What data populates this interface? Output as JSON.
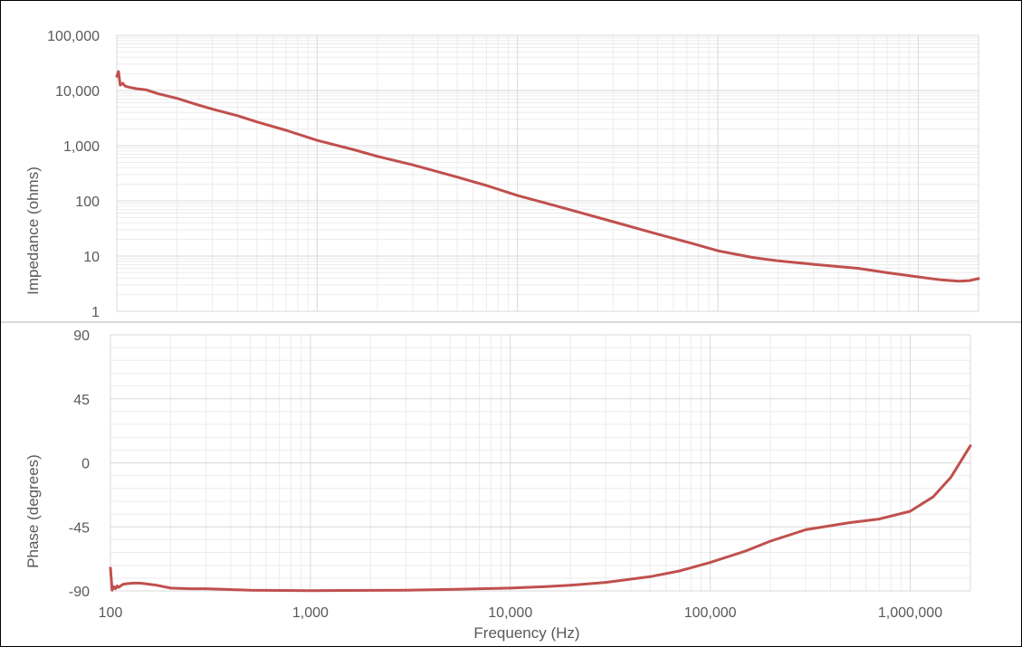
{
  "colors": {
    "series": "#c0504d",
    "major_grid": "#d9d9d9",
    "minor_grid": "#ececec",
    "axis_text": "#595959"
  },
  "chart_data": [
    {
      "type": "line",
      "title": "",
      "xlabel": "",
      "ylabel": "Impedance (ohms)",
      "x_scale": "log",
      "y_scale": "log",
      "xlim": [
        100,
        2000000
      ],
      "ylim": [
        1,
        100000
      ],
      "grid": true,
      "yticks": [
        1,
        10,
        100,
        1000,
        10000,
        100000
      ],
      "ytick_labels": [
        "1",
        "10",
        "100",
        "1,000",
        "10,000",
        "100,000"
      ],
      "series": [
        {
          "x": [
            100,
            102,
            104,
            107,
            110,
            115,
            125,
            140,
            160,
            200,
            250,
            300,
            400,
            500,
            700,
            1000,
            1500,
            2000,
            3000,
            5000,
            7000,
            10000,
            15000,
            20000,
            30000,
            50000,
            70000,
            100000,
            150000,
            200000,
            300000,
            500000,
            700000,
            1000000,
            1300000,
            1600000,
            1800000,
            2000000
          ],
          "y": [
            18000,
            22000,
            12500,
            13500,
            12000,
            11500,
            10800,
            10300,
            8800,
            7200,
            5600,
            4600,
            3500,
            2700,
            1900,
            1250,
            860,
            640,
            450,
            270,
            190,
            125,
            84,
            63,
            42,
            25,
            18,
            12.5,
            9.4,
            8.2,
            7.1,
            6.0,
            5.0,
            4.2,
            3.7,
            3.5,
            3.6,
            3.9
          ]
        }
      ]
    },
    {
      "type": "line",
      "title": "",
      "xlabel": "Frequency (Hz)",
      "ylabel": "Phase (degrees)",
      "x_scale": "log",
      "xlim": [
        100,
        2000000
      ],
      "ylim": [
        -90,
        90
      ],
      "grid": true,
      "xticks": [
        100,
        1000,
        10000,
        100000,
        1000000
      ],
      "xtick_labels": [
        "100",
        "1,000",
        "10,000",
        "100,000",
        "1,000,000"
      ],
      "yticks": [
        -90,
        -45,
        0,
        45,
        90
      ],
      "ytick_labels": [
        "-90",
        "-45",
        "0",
        "45",
        "90"
      ],
      "series": [
        {
          "x": [
            100,
            102,
            104,
            106,
            108,
            110,
            115,
            120,
            130,
            140,
            150,
            170,
            200,
            250,
            300,
            500,
            1000,
            3000,
            5000,
            10000,
            15000,
            20000,
            30000,
            50000,
            70000,
            100000,
            150000,
            200000,
            300000,
            500000,
            700000,
            1000000,
            1300000,
            1600000,
            2000000
          ],
          "y": [
            -74,
            -89.5,
            -87,
            -88.5,
            -86.5,
            -87.5,
            -85.5,
            -85,
            -84.5,
            -84.5,
            -85,
            -86,
            -88,
            -88.5,
            -88.5,
            -89.5,
            -89.8,
            -89.5,
            -89,
            -88,
            -87,
            -86,
            -84,
            -80,
            -76,
            -70,
            -62,
            -55,
            -47,
            -42,
            -39.5,
            -34,
            -24,
            -10,
            12
          ]
        }
      ]
    }
  ]
}
